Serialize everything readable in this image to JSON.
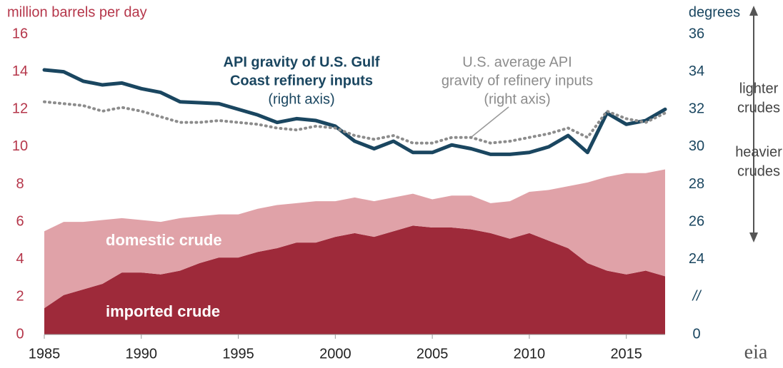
{
  "chart_data": {
    "type": "area_line",
    "left_axis_label": "million barrels per day",
    "right_axis_label": "degrees",
    "x": [
      1985,
      1986,
      1987,
      1988,
      1989,
      1990,
      1991,
      1992,
      1993,
      1994,
      1995,
      1996,
      1997,
      1998,
      1999,
      2000,
      2001,
      2002,
      2003,
      2004,
      2005,
      2006,
      2007,
      2008,
      2009,
      2010,
      2011,
      2012,
      2013,
      2014,
      2015,
      2016,
      2017
    ],
    "xlim": [
      1985,
      2017
    ],
    "xticks": [
      1985,
      1990,
      1995,
      2000,
      2005,
      2010,
      2015
    ],
    "ylim": [
      0,
      16
    ],
    "yticks": [
      0,
      2,
      4,
      6,
      8,
      10,
      12,
      14,
      16
    ],
    "y2lim": [
      20,
      36
    ],
    "y2ticks": [
      {
        "value": 20,
        "label": "0"
      },
      {
        "value": 22,
        "label": "//"
      },
      24,
      26,
      28,
      30,
      32,
      34,
      36
    ],
    "grid": false,
    "series": [
      {
        "name": "imported crude",
        "kind": "area",
        "color": "#9e2a3a",
        "values": [
          1.4,
          2.1,
          2.4,
          2.7,
          3.3,
          3.3,
          3.2,
          3.4,
          3.8,
          4.1,
          4.1,
          4.4,
          4.6,
          4.9,
          4.9,
          5.2,
          5.4,
          5.2,
          5.5,
          5.8,
          5.7,
          5.7,
          5.6,
          5.4,
          5.1,
          5.4,
          5.0,
          4.6,
          3.8,
          3.4,
          3.2,
          3.4,
          3.1
        ]
      },
      {
        "name": "domestic crude",
        "kind": "area",
        "stacked": true,
        "color": "#e0a2a8",
        "values": [
          4.1,
          3.9,
          3.6,
          3.4,
          2.9,
          2.8,
          2.8,
          2.8,
          2.5,
          2.3,
          2.3,
          2.3,
          2.3,
          2.1,
          2.2,
          1.9,
          1.9,
          1.9,
          1.8,
          1.7,
          1.5,
          1.7,
          1.8,
          1.6,
          2.0,
          2.2,
          2.7,
          3.3,
          4.3,
          5.0,
          5.4,
          5.2,
          5.7
        ]
      },
      {
        "label_lines": [
          "API gravity of U.S. Gulf",
          "Coast refinery inputs",
          "(right axis)"
        ],
        "kind": "line",
        "axis": "y2",
        "color": "#1a4660",
        "dash": false,
        "values": [
          34.1,
          34.0,
          33.5,
          33.3,
          33.4,
          33.1,
          32.9,
          32.4,
          32.35,
          32.3,
          32.0,
          31.7,
          31.3,
          31.5,
          31.4,
          31.1,
          30.3,
          29.9,
          30.3,
          29.7,
          29.7,
          30.1,
          29.9,
          29.6,
          29.6,
          29.7,
          30.0,
          30.6,
          29.7,
          31.8,
          31.2,
          31.4,
          32.0
        ]
      },
      {
        "label_lines": [
          "U.S. average API",
          "gravity of refinery inputs",
          "(right axis)"
        ],
        "kind": "line",
        "axis": "y2",
        "color": "#8c8c8c",
        "dash": true,
        "values": [
          32.4,
          32.3,
          32.2,
          31.9,
          32.1,
          31.9,
          31.6,
          31.3,
          31.3,
          31.4,
          31.3,
          31.2,
          31.0,
          30.9,
          31.1,
          31.0,
          30.6,
          30.4,
          30.6,
          30.2,
          30.2,
          30.5,
          30.5,
          30.2,
          30.3,
          30.5,
          30.7,
          31.0,
          30.5,
          31.9,
          31.5,
          31.3,
          31.8
        ]
      }
    ],
    "side_labels": {
      "lighter": [
        "lighter",
        "crudes"
      ],
      "heavier": [
        "heavier",
        "crudes"
      ]
    },
    "logo": "eia"
  }
}
